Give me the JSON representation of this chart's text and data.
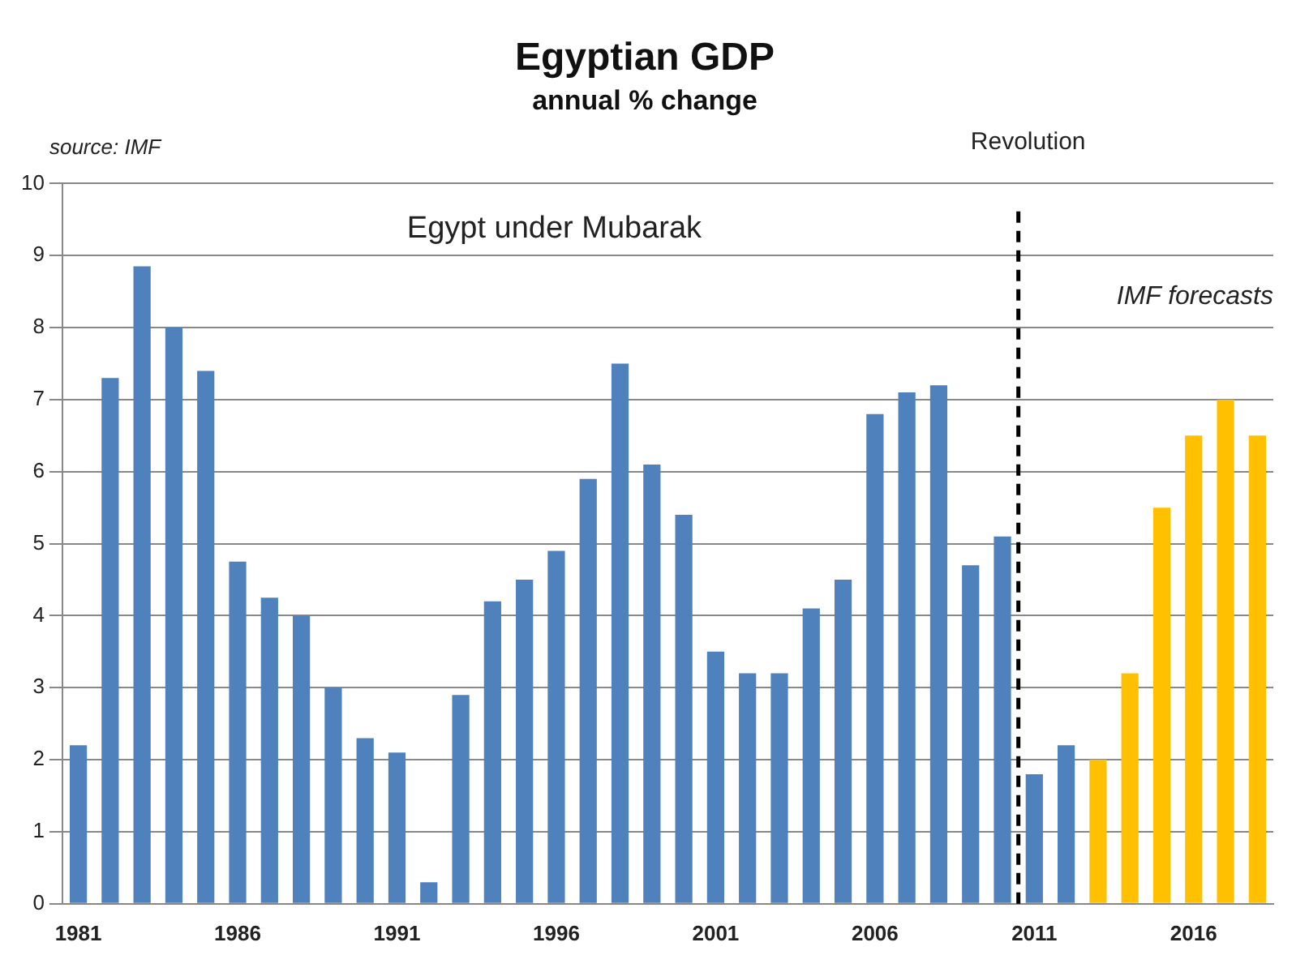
{
  "chart_data": {
    "type": "bar",
    "title": "Egyptian GDP",
    "subtitle": "annual % change",
    "categories": [
      "1981",
      null,
      null,
      null,
      null,
      "1986",
      null,
      null,
      null,
      null,
      "1991",
      null,
      null,
      null,
      null,
      "1996",
      null,
      null,
      null,
      null,
      "2001",
      null,
      null,
      null,
      null,
      "2006",
      null,
      null,
      null,
      null,
      "2011",
      null,
      null,
      null,
      null,
      "2016",
      null,
      null
    ],
    "values": [
      2.2,
      7.3,
      8.85,
      8.0,
      7.4,
      4.75,
      4.25,
      4.0,
      3.0,
      2.3,
      2.1,
      0.3,
      2.9,
      4.2,
      4.5,
      4.9,
      5.9,
      7.5,
      6.1,
      5.4,
      3.5,
      3.2,
      3.2,
      4.1,
      4.5,
      6.8,
      7.1,
      7.2,
      4.7,
      5.1,
      1.8,
      2.2,
      2.0,
      3.2,
      5.5,
      6.5,
      7.0,
      6.5
    ],
    "colors": [
      "#4f81bd",
      "#4f81bd",
      "#4f81bd",
      "#4f81bd",
      "#4f81bd",
      "#4f81bd",
      "#4f81bd",
      "#4f81bd",
      "#4f81bd",
      "#4f81bd",
      "#4f81bd",
      "#4f81bd",
      "#4f81bd",
      "#4f81bd",
      "#4f81bd",
      "#4f81bd",
      "#4f81bd",
      "#4f81bd",
      "#4f81bd",
      "#4f81bd",
      "#4f81bd",
      "#4f81bd",
      "#4f81bd",
      "#4f81bd",
      "#4f81bd",
      "#4f81bd",
      "#4f81bd",
      "#4f81bd",
      "#4f81bd",
      "#4f81bd",
      "#4f81bd",
      "#4f81bd",
      "#ffc000",
      "#ffc000",
      "#ffc000",
      "#ffc000",
      "#ffc000",
      "#ffc000"
    ],
    "ylim": [
      0,
      10
    ],
    "yticks": [
      0,
      1,
      2,
      3,
      4,
      5,
      6,
      7,
      8,
      9,
      10
    ],
    "grid": "y",
    "legend": false,
    "ref_lines": [
      {
        "axis": "x",
        "value": "2011",
        "label": "Revolution",
        "color": "#000000",
        "line_style": "dashed"
      }
    ],
    "annotations": [
      "source: IMF",
      "Egypt under Mubarak",
      "IMF forecasts"
    ]
  }
}
